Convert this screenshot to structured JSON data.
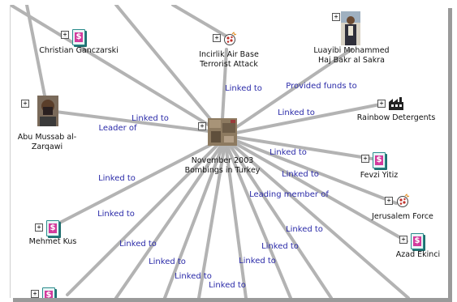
{
  "edge_labels": [
    {
      "text": "Linked to"
    },
    {
      "text": "Provided funds to"
    },
    {
      "text": "Linked to"
    },
    {
      "text": "Linked to"
    },
    {
      "text": "Leader of"
    },
    {
      "text": "Linked to"
    },
    {
      "text": "Linked to"
    },
    {
      "text": "Leading member of"
    },
    {
      "text": "Linked to"
    },
    {
      "text": "Linked to"
    },
    {
      "text": "Linked to"
    },
    {
      "text": "Linked to"
    },
    {
      "text": "Linked to"
    },
    {
      "text": "Linked to"
    },
    {
      "text": "Linked to"
    },
    {
      "text": "Linked to"
    },
    {
      "text": "Linked to"
    }
  ],
  "nodes": {
    "christian": {
      "label": "Christian Ganczarski",
      "icon": "money-icon"
    },
    "incirlik": {
      "label": "Incirlik Air Base\nTerrorist Attack",
      "icon": "bomb-icon"
    },
    "luayibi": {
      "label": "Luayibi Mohammed\nHaj Bakr al Sakra",
      "icon": "person-photo"
    },
    "zarqawi": {
      "label": "Abu Mussab al-\nZarqawi",
      "icon": "person-photo"
    },
    "november": {
      "label": "November 2003\nBombings in Turkey",
      "icon": "event-photo"
    },
    "rainbow": {
      "label": "Rainbow Detergents",
      "icon": "factory-icon"
    },
    "fevzi": {
      "label": "Fevzi Yitiz",
      "icon": "money-icon"
    },
    "jerusalem": {
      "label": "Jerusalem Force",
      "icon": "bomb-icon"
    },
    "azad": {
      "label": "Azad Ekinci",
      "icon": "money-icon"
    },
    "mehmet": {
      "label": "Mehmet Kus",
      "icon": "money-icon"
    }
  },
  "expand_symbol": "+",
  "money_glyph": "$",
  "colors": {
    "edge": "#b3b3b3",
    "edge_label": "#2a2aa8",
    "node_label": "#111111",
    "icon_border": "#2a8c8c",
    "icon_dollar": "#d23a9c"
  }
}
